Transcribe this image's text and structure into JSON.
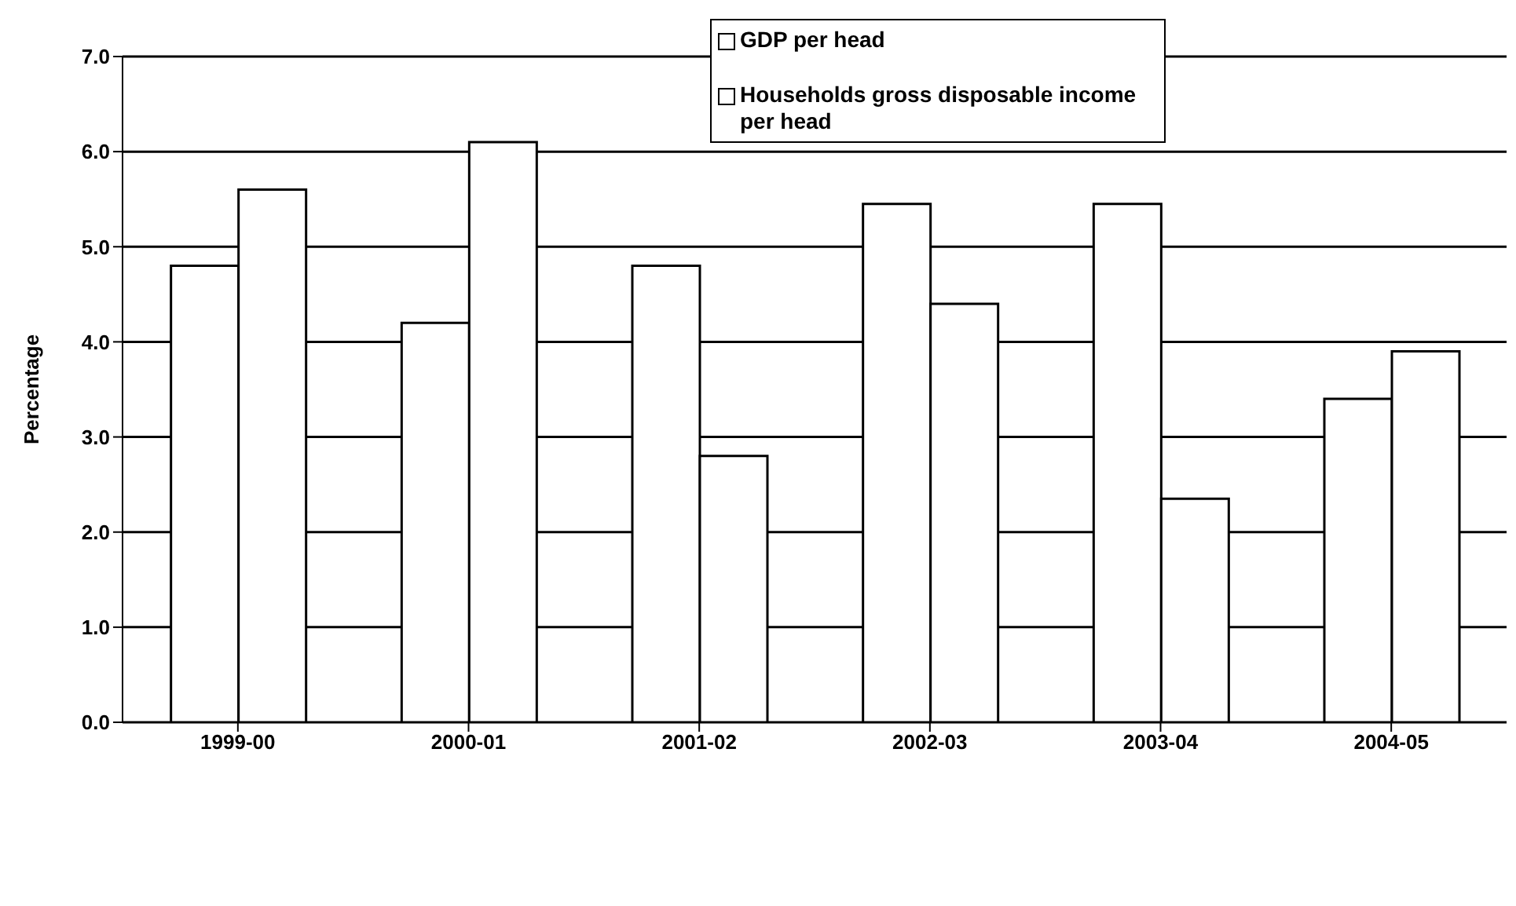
{
  "chart_data": {
    "type": "bar",
    "ylabel": "Percentage",
    "categories": [
      "1999-00",
      "2000-01",
      "2001-02",
      "2002-03",
      "2003-04",
      "2004-05"
    ],
    "series": [
      {
        "name": "GDP per head",
        "color": "#ffffff",
        "values": [
          4.8,
          4.2,
          4.8,
          5.45,
          5.45,
          3.4
        ]
      },
      {
        "name": "Households gross disposable income per head",
        "color": "#ffffff",
        "values": [
          5.6,
          6.1,
          2.8,
          4.4,
          2.35,
          3.9
        ]
      }
    ],
    "ylim": [
      0,
      7
    ],
    "yticks": [
      {
        "value": 0,
        "label": "0.0"
      },
      {
        "value": 1,
        "label": "1.0"
      },
      {
        "value": 2,
        "label": "2.0"
      },
      {
        "value": 3,
        "label": "3.0"
      },
      {
        "value": 4,
        "label": "4.0"
      },
      {
        "value": 5,
        "label": "5.0"
      },
      {
        "value": 6,
        "label": "6.0"
      },
      {
        "value": 7,
        "label": "7.0"
      }
    ],
    "grid": "y",
    "legend": "top"
  }
}
